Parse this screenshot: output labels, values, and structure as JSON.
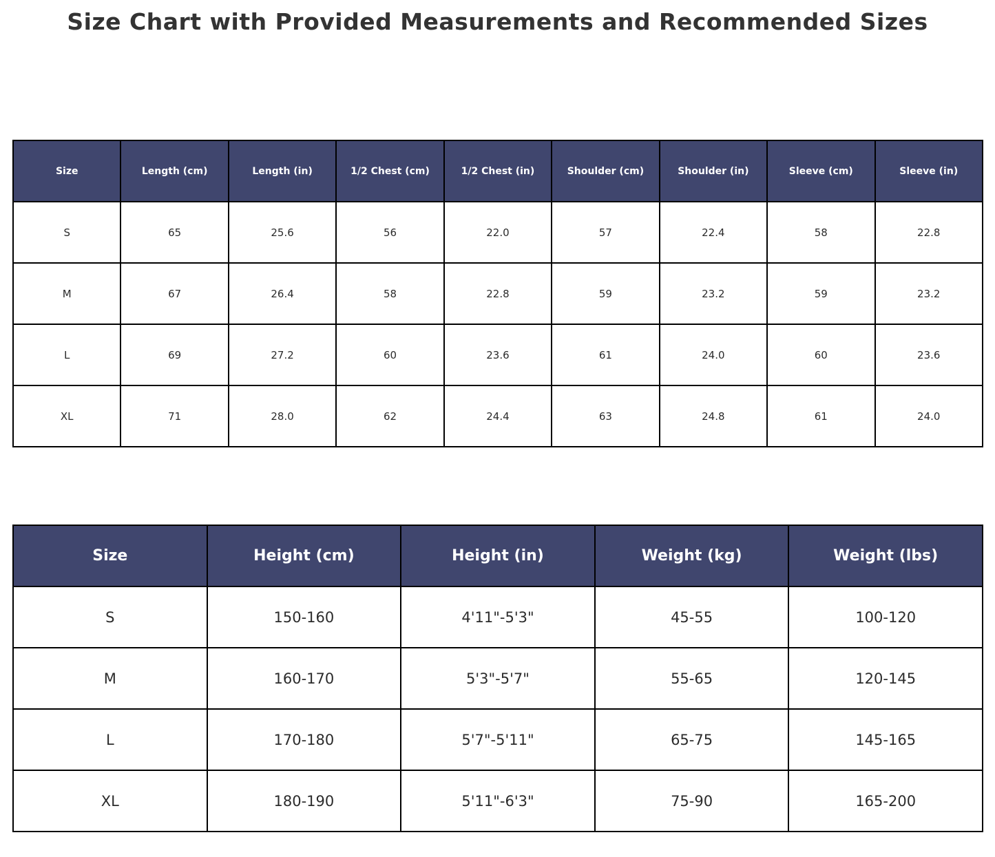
{
  "page": {
    "title": "Size Chart with Provided Measurements and Recommended Sizes"
  },
  "colors": {
    "header_bg": "#40466e",
    "header_text": "#ffffff",
    "border": "#000000",
    "cell_bg": "#ffffff",
    "title_text": "#333333"
  },
  "chart_data": [
    {
      "type": "table",
      "name": "provided_measurements",
      "columns": [
        "Size",
        "Length (cm)",
        "Length (in)",
        "1/2 Chest (cm)",
        "1/2 Chest (in)",
        "Shoulder (cm)",
        "Shoulder (in)",
        "Sleeve (cm)",
        "Sleeve (in)"
      ],
      "rows": [
        [
          "S",
          "65",
          "25.6",
          "56",
          "22.0",
          "57",
          "22.4",
          "58",
          "22.8"
        ],
        [
          "M",
          "67",
          "26.4",
          "58",
          "22.8",
          "59",
          "23.2",
          "59",
          "23.2"
        ],
        [
          "L",
          "69",
          "27.2",
          "60",
          "23.6",
          "61",
          "24.0",
          "60",
          "23.6"
        ],
        [
          "XL",
          "71",
          "28.0",
          "62",
          "24.4",
          "63",
          "24.8",
          "61",
          "24.0"
        ]
      ]
    },
    {
      "type": "table",
      "name": "recommended_sizes",
      "columns": [
        "Size",
        "Height (cm)",
        "Height (in)",
        "Weight (kg)",
        "Weight (lbs)"
      ],
      "rows": [
        [
          "S",
          "150-160",
          "4'11\"-5'3\"",
          "45-55",
          "100-120"
        ],
        [
          "M",
          "160-170",
          "5'3\"-5'7\"",
          "55-65",
          "120-145"
        ],
        [
          "L",
          "170-180",
          "5'7\"-5'11\"",
          "65-75",
          "145-165"
        ],
        [
          "XL",
          "180-190",
          "5'11\"-6'3\"",
          "75-90",
          "165-200"
        ]
      ]
    }
  ]
}
